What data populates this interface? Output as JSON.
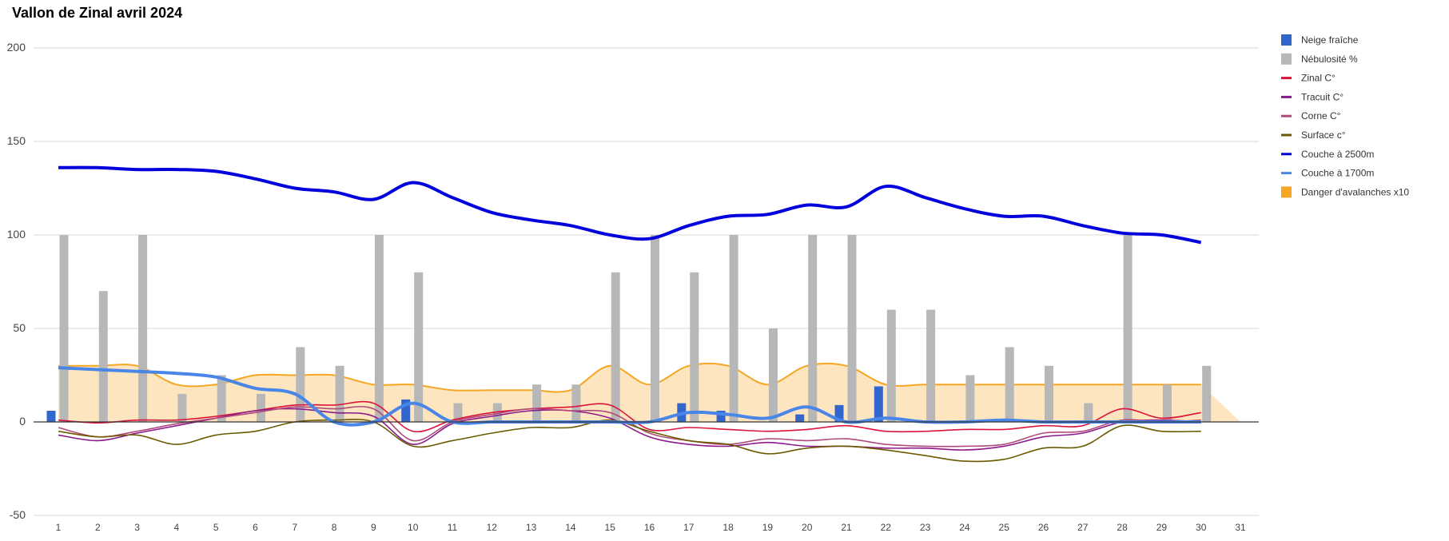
{
  "chart_data": {
    "type": "bar",
    "title": "Vallon de Zinal avril 2024",
    "xlabel": "",
    "ylabel": "",
    "ylim": [
      -50,
      200
    ],
    "yticks": [
      -50,
      0,
      50,
      100,
      150,
      200
    ],
    "grid": true,
    "legend_position": "right",
    "x": [
      1,
      2,
      3,
      4,
      5,
      6,
      7,
      8,
      9,
      10,
      11,
      12,
      13,
      14,
      15,
      16,
      17,
      18,
      19,
      20,
      21,
      22,
      23,
      24,
      25,
      26,
      27,
      28,
      29,
      30,
      31
    ],
    "series": [
      {
        "name": "Neige fraîche",
        "kind": "bar",
        "color": "#3366cc",
        "values": [
          6,
          0,
          0,
          0,
          0,
          0,
          0,
          0,
          0,
          12,
          0,
          0,
          0,
          0,
          0,
          0,
          10,
          6,
          0,
          4,
          9,
          19,
          0,
          0,
          0,
          0,
          0,
          0,
          0,
          0,
          null
        ]
      },
      {
        "name": "Nébulosité %",
        "kind": "bar",
        "color": "#b7b7b7",
        "values": [
          100,
          70,
          100,
          15,
          25,
          15,
          40,
          30,
          100,
          80,
          10,
          10,
          20,
          20,
          80,
          100,
          80,
          100,
          50,
          100,
          100,
          60,
          60,
          25,
          40,
          30,
          10,
          100,
          20,
          30,
          null
        ]
      },
      {
        "name": "Zinal C°",
        "kind": "line",
        "color": "#dc143c",
        "values": [
          1,
          -0.5,
          1,
          1,
          3,
          6,
          9,
          9,
          10,
          -5,
          1,
          5,
          7,
          8,
          9,
          -4,
          -3,
          -4,
          -5,
          -4,
          -2,
          -5,
          -5,
          -4,
          -4,
          -2,
          -2,
          7,
          2,
          5,
          null
        ]
      },
      {
        "name": "Tracuit C°",
        "kind": "line",
        "color": "#8b1a8b",
        "values": [
          -7,
          -10,
          -6,
          -2,
          2,
          6,
          7,
          5,
          3,
          -12,
          -1,
          3,
          6,
          6,
          2,
          -8,
          -12,
          -13,
          -11,
          -13,
          -13,
          -14,
          -14,
          -15,
          -13,
          -8,
          -6,
          0,
          1,
          0,
          null
        ]
      },
      {
        "name": "Corne C°",
        "kind": "line",
        "color": "#b04a7a",
        "values": [
          -3,
          -8,
          -5,
          -1,
          2,
          5,
          8,
          7,
          7,
          -10,
          0,
          4,
          7,
          6,
          5,
          -6,
          -10,
          -12,
          -9,
          -10,
          -9,
          -12,
          -13,
          -13,
          -12,
          -6,
          -5,
          1,
          0,
          1,
          null
        ]
      },
      {
        "name": "Surface c°",
        "kind": "line",
        "color": "#6b5a00",
        "values": [
          -5,
          -8,
          -7,
          -12,
          -7,
          -5,
          0,
          1,
          0,
          -13,
          -10,
          -6,
          -3,
          -3,
          1,
          -5,
          -10,
          -12,
          -17,
          -14,
          -13,
          -15,
          -18,
          -21,
          -20,
          -14,
          -13,
          -2,
          -5,
          -5,
          null
        ]
      },
      {
        "name": "Couche à 2500m",
        "kind": "line",
        "color": "#0000dd",
        "values": [
          136,
          136,
          135,
          135,
          134,
          130,
          125,
          123,
          119,
          128,
          120,
          112,
          108,
          105,
          100,
          98,
          105,
          110,
          111,
          116,
          115,
          126,
          120,
          114,
          110,
          110,
          105,
          101,
          100,
          96,
          null
        ]
      },
      {
        "name": "Couche à 1700m",
        "kind": "line",
        "color": "#4a86e8",
        "values": [
          29,
          28,
          27,
          26,
          24,
          18,
          15,
          0,
          0,
          10,
          0,
          0,
          0,
          0,
          0,
          0,
          5,
          4,
          2,
          8,
          0,
          2,
          0,
          0,
          1,
          0,
          0,
          0,
          0,
          0,
          null
        ]
      },
      {
        "name": "Danger d'avalanches x10",
        "kind": "area",
        "color": "#f5a623",
        "fill": "#fde2b8",
        "values": [
          30,
          30,
          30,
          20,
          20,
          25,
          25,
          25,
          20,
          20,
          17,
          17,
          17,
          17,
          30,
          20,
          30,
          30,
          20,
          30,
          30,
          20,
          20,
          20,
          20,
          20,
          20,
          20,
          20,
          20,
          0
        ]
      }
    ]
  }
}
